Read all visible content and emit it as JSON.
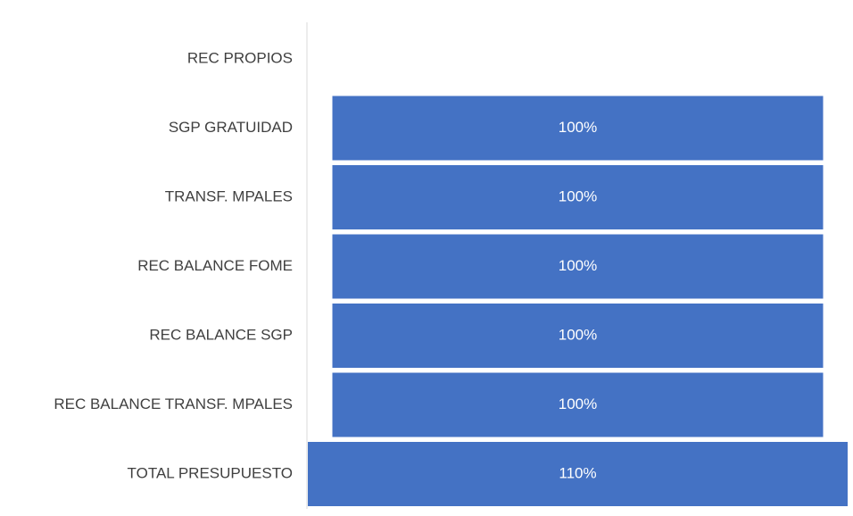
{
  "chart_data": {
    "type": "funnel",
    "categories": [
      "REC PROPIOS",
      "SGP GRATUIDAD",
      "TRANSF. MPALES",
      "REC BALANCE FOME",
      "REC BALANCE SGP",
      "REC BALANCE TRANSF. MPALES",
      "TOTAL PRESUPUESTO"
    ],
    "values": [
      null,
      100,
      100,
      100,
      100,
      100,
      110
    ],
    "value_labels": [
      null,
      "100%",
      "100%",
      "100%",
      "100%",
      "100%",
      "110%"
    ],
    "color": "#4472c4"
  }
}
